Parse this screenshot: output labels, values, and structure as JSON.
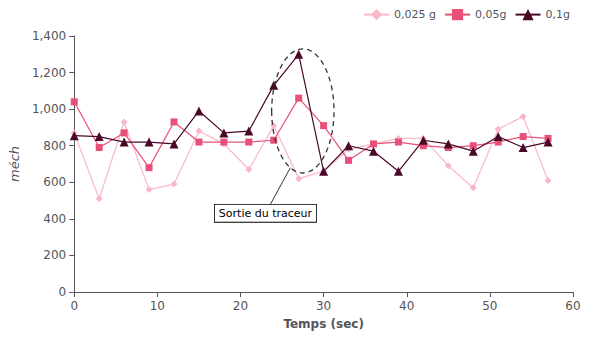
{
  "chart_data": {
    "type": "line",
    "xlabel": "Temps (sec)",
    "ylabel": "méch",
    "x": [
      0,
      3,
      6,
      9,
      12,
      15,
      18,
      21,
      24,
      27,
      30,
      33,
      36,
      39,
      42,
      45,
      48,
      51,
      54,
      57
    ],
    "series": [
      {
        "name": "0,025 g",
        "color": "#f9b8c8",
        "marker": "diamond",
        "values": [
          870,
          510,
          930,
          560,
          590,
          880,
          810,
          670,
          910,
          620,
          660,
          780,
          810,
          840,
          840,
          690,
          570,
          890,
          960,
          610
        ]
      },
      {
        "name": "0,05g",
        "color": "#e8507a",
        "marker": "square",
        "values": [
          1040,
          790,
          870,
          680,
          930,
          820,
          820,
          820,
          830,
          1060,
          910,
          720,
          810,
          820,
          800,
          790,
          800,
          820,
          850,
          840
        ]
      },
      {
        "name": "0,1g",
        "color": "#4a0828",
        "marker": "triangle",
        "values": [
          855,
          850,
          820,
          820,
          810,
          990,
          870,
          880,
          1130,
          1300,
          660,
          800,
          770,
          660,
          830,
          810,
          770,
          850,
          790,
          820
        ]
      }
    ],
    "xlim": [
      0,
      60
    ],
    "ylim": [
      0,
      1400
    ],
    "xticks": [
      0,
      10,
      20,
      30,
      40,
      50,
      60
    ],
    "yticks": [
      0,
      200,
      400,
      600,
      800,
      1000,
      1200,
      1400
    ],
    "grid": false,
    "legend": "upper right",
    "annotation": {
      "text": "Sortie du traceur",
      "x": 23,
      "y": 430,
      "target": {
        "x": 26,
        "y": 680
      }
    },
    "ellipse": {
      "x": 27.5,
      "y": 990,
      "width": 7.5,
      "height": 680
    }
  }
}
